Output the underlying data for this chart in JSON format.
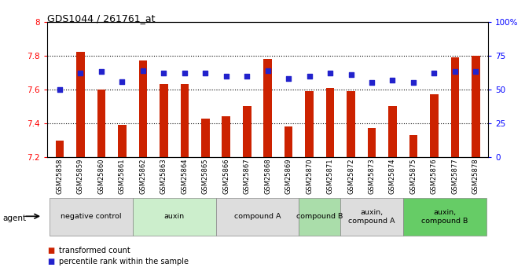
{
  "title": "GDS1044 / 261761_at",
  "samples": [
    "GSM25858",
    "GSM25859",
    "GSM25860",
    "GSM25861",
    "GSM25862",
    "GSM25863",
    "GSM25864",
    "GSM25865",
    "GSM25866",
    "GSM25867",
    "GSM25868",
    "GSM25869",
    "GSM25870",
    "GSM25871",
    "GSM25872",
    "GSM25873",
    "GSM25874",
    "GSM25875",
    "GSM25876",
    "GSM25877",
    "GSM25878"
  ],
  "bar_values": [
    7.3,
    7.82,
    7.6,
    7.39,
    7.77,
    7.63,
    7.63,
    7.43,
    7.44,
    7.5,
    7.78,
    7.38,
    7.59,
    7.61,
    7.59,
    7.37,
    7.5,
    7.33,
    7.57,
    7.79,
    7.8
  ],
  "percentile_values": [
    50,
    62,
    63,
    56,
    64,
    62,
    62,
    62,
    60,
    60,
    64,
    58,
    60,
    62,
    61,
    55,
    57,
    55,
    62,
    63,
    63
  ],
  "bar_color": "#cc2200",
  "dot_color": "#2222cc",
  "ymin": 7.2,
  "ymax": 8.0,
  "ytick_labels": [
    "7.2",
    "7.4",
    "7.6",
    "7.8",
    "8"
  ],
  "ytick_vals": [
    7.2,
    7.4,
    7.6,
    7.8,
    8.0
  ],
  "right_yticks": [
    0,
    25,
    50,
    75,
    100
  ],
  "right_ytick_labels": [
    "0",
    "25",
    "50",
    "75",
    "100%"
  ],
  "grid_lines": [
    7.4,
    7.6,
    7.8
  ],
  "groups": [
    {
      "label": "negative control",
      "start": 0,
      "end": 3,
      "color": "#dddddd"
    },
    {
      "label": "auxin",
      "start": 4,
      "end": 7,
      "color": "#cceecc"
    },
    {
      "label": "compound A",
      "start": 8,
      "end": 11,
      "color": "#dddddd"
    },
    {
      "label": "compound B",
      "start": 12,
      "end": 13,
      "color": "#aaddaa"
    },
    {
      "label": "auxin,\ncompound A",
      "start": 14,
      "end": 16,
      "color": "#dddddd"
    },
    {
      "label": "auxin,\ncompound B",
      "start": 17,
      "end": 20,
      "color": "#66cc66"
    }
  ],
  "legend_items": [
    {
      "label": "transformed count",
      "color": "#cc2200"
    },
    {
      "label": "percentile rank within the sample",
      "color": "#2222cc"
    }
  ],
  "agent_label": "agent",
  "bar_width": 0.4
}
